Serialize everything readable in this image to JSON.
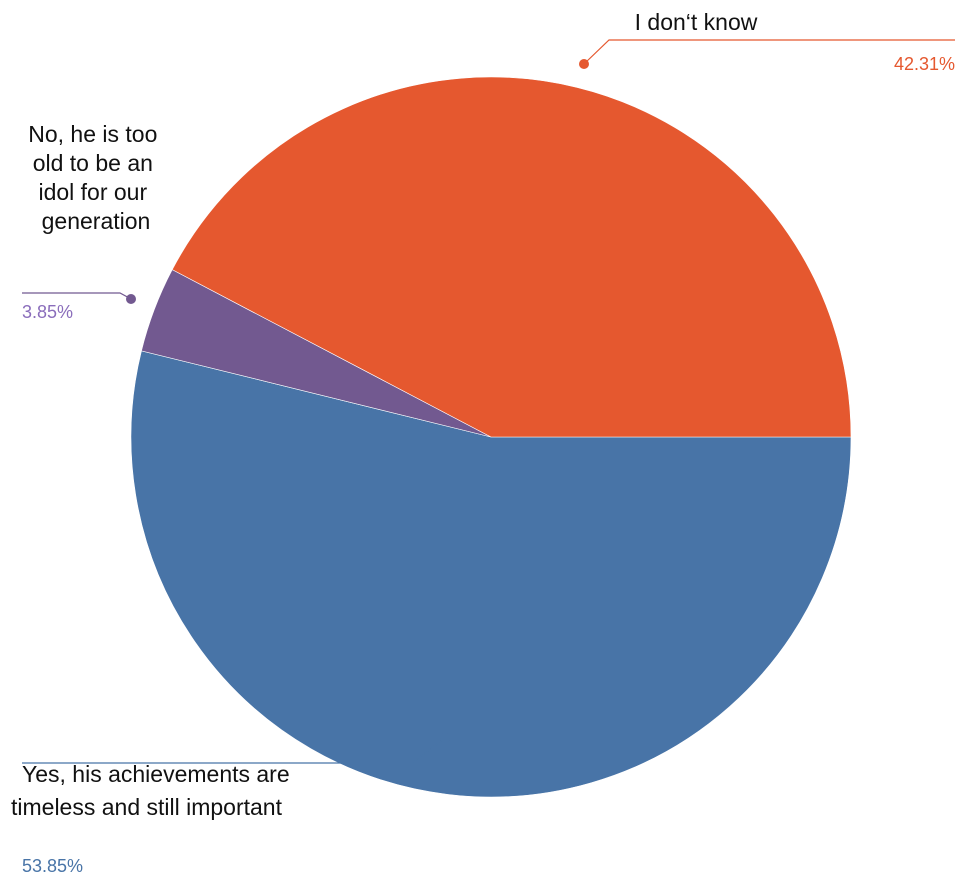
{
  "chart_data": {
    "type": "pie",
    "slices": [
      {
        "label": "Yes, his achievements are timeless and still important",
        "label_lines": [
          "Yes, his achievements are",
          "timeless and still important"
        ],
        "value": 53.85,
        "value_label": "53.85%",
        "color": "#4874a7"
      },
      {
        "label": "No, he is too old to be an idol for our generation",
        "label_lines": [
          "No, he  is too",
          "old to be an",
          "idol for our",
          "generation"
        ],
        "value": 3.85,
        "value_label": "3.85%",
        "color": "#725990"
      },
      {
        "label": "I don‘t know",
        "label_lines": [
          "I don‘t know"
        ],
        "value": 42.31,
        "value_label": "42.31%",
        "color": "#e5582f"
      }
    ],
    "start_direction": "east",
    "direction": "clockwise",
    "legend": "none"
  }
}
